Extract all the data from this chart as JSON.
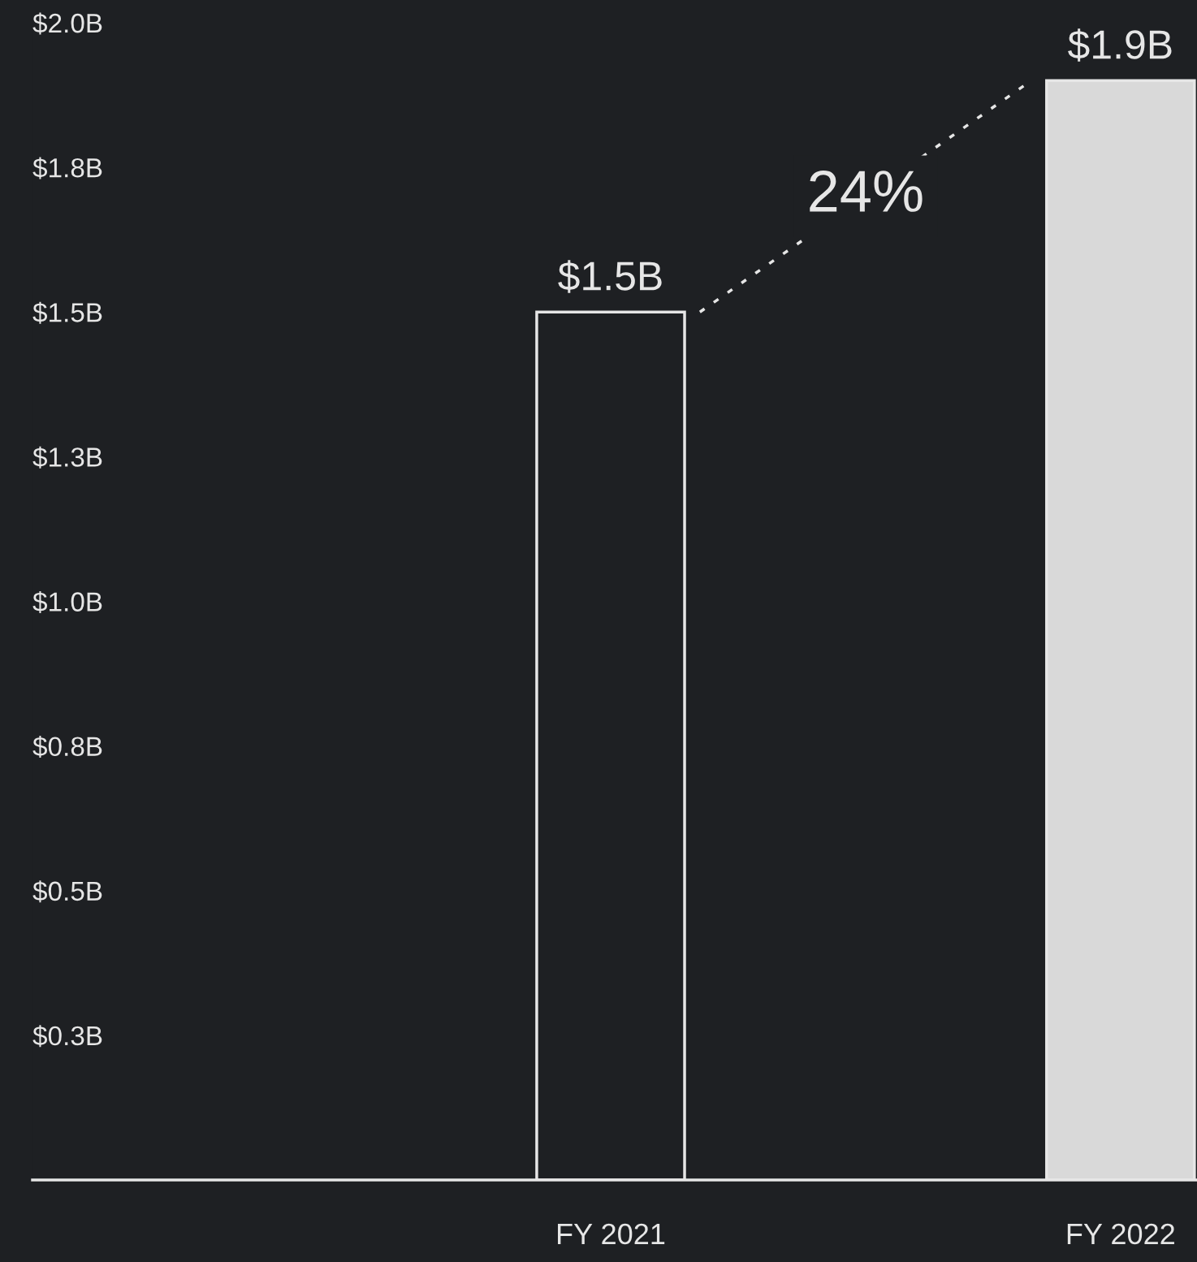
{
  "chart_data": {
    "type": "bar",
    "categories": [
      "FY 2021",
      "FY 2022"
    ],
    "values": [
      1.5,
      1.9
    ],
    "value_labels": [
      "$1.5B",
      "$1.9B"
    ],
    "colors": [
      "#1e2023",
      "#d9d9d9"
    ],
    "ylim": [
      0,
      2.0
    ],
    "yticks": [
      {
        "value": 0.25,
        "label": "$0.3B"
      },
      {
        "value": 0.5,
        "label": "$0.5B"
      },
      {
        "value": 0.75,
        "label": "$0.8B"
      },
      {
        "value": 1.0,
        "label": "$1.0B"
      },
      {
        "value": 1.25,
        "label": "$1.3B"
      },
      {
        "value": 1.5,
        "label": "$1.5B"
      },
      {
        "value": 1.75,
        "label": "$1.8B"
      },
      {
        "value": 2.0,
        "label": "$2.0B"
      }
    ],
    "grid": false,
    "annotations": [
      "24%"
    ]
  }
}
